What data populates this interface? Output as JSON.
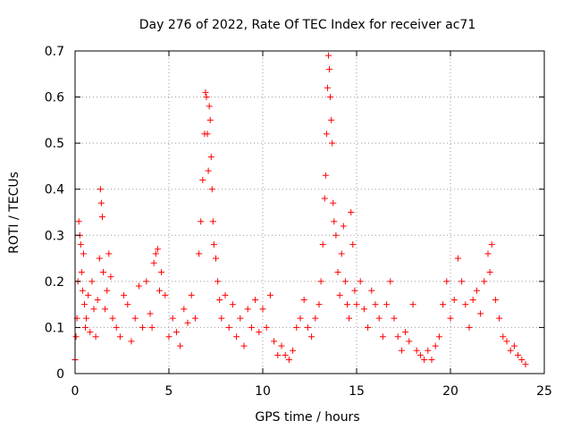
{
  "chart_data": {
    "type": "scatter",
    "title": "Day 276 of 2022, Rate Of TEC Index for receiver ac71",
    "xlabel": "GPS time / hours",
    "ylabel": "ROTI / TECUs",
    "xlim": [
      0,
      25
    ],
    "ylim": [
      0,
      0.7
    ],
    "x_ticks": [
      0,
      5,
      10,
      15,
      20,
      25
    ],
    "y_ticks": [
      0,
      0.1,
      0.2,
      0.3,
      0.4,
      0.5,
      0.6,
      0.7
    ],
    "x_tick_labels": [
      "0",
      "5",
      "10",
      "15",
      "20",
      "25"
    ],
    "y_tick_labels": [
      "0",
      "0.1",
      "0.2",
      "0.3",
      "0.4",
      "0.5",
      "0.6",
      "0.7"
    ],
    "grid": true,
    "marker": "plus",
    "color": "#ff0000",
    "series": [
      {
        "points": [
          [
            0.0,
            0.03
          ],
          [
            0.05,
            0.08
          ],
          [
            0.1,
            0.12
          ],
          [
            0.15,
            0.2
          ],
          [
            0.2,
            0.33
          ],
          [
            0.25,
            0.3
          ],
          [
            0.3,
            0.28
          ],
          [
            0.35,
            0.22
          ],
          [
            0.4,
            0.18
          ],
          [
            0.45,
            0.26
          ],
          [
            0.5,
            0.15
          ],
          [
            0.55,
            0.1
          ],
          [
            0.6,
            0.12
          ],
          [
            0.7,
            0.17
          ],
          [
            0.8,
            0.09
          ],
          [
            0.9,
            0.2
          ],
          [
            1.0,
            0.14
          ],
          [
            1.1,
            0.08
          ],
          [
            1.2,
            0.16
          ],
          [
            1.3,
            0.25
          ],
          [
            1.35,
            0.4
          ],
          [
            1.4,
            0.37
          ],
          [
            1.45,
            0.34
          ],
          [
            1.5,
            0.22
          ],
          [
            1.6,
            0.14
          ],
          [
            1.7,
            0.18
          ],
          [
            1.8,
            0.26
          ],
          [
            1.9,
            0.21
          ],
          [
            2.0,
            0.12
          ],
          [
            2.2,
            0.1
          ],
          [
            2.4,
            0.08
          ],
          [
            2.6,
            0.17
          ],
          [
            2.8,
            0.15
          ],
          [
            3.0,
            0.07
          ],
          [
            3.2,
            0.12
          ],
          [
            3.4,
            0.19
          ],
          [
            3.6,
            0.1
          ],
          [
            3.8,
            0.2
          ],
          [
            4.0,
            0.13
          ],
          [
            4.1,
            0.1
          ],
          [
            4.2,
            0.24
          ],
          [
            4.3,
            0.26
          ],
          [
            4.4,
            0.27
          ],
          [
            4.5,
            0.18
          ],
          [
            4.6,
            0.22
          ],
          [
            4.8,
            0.17
          ],
          [
            5.0,
            0.08
          ],
          [
            5.2,
            0.12
          ],
          [
            5.4,
            0.09
          ],
          [
            5.6,
            0.06
          ],
          [
            5.8,
            0.14
          ],
          [
            6.0,
            0.11
          ],
          [
            6.2,
            0.17
          ],
          [
            6.4,
            0.12
          ],
          [
            6.6,
            0.26
          ],
          [
            6.7,
            0.33
          ],
          [
            6.8,
            0.42
          ],
          [
            6.9,
            0.52
          ],
          [
            6.95,
            0.61
          ],
          [
            7.0,
            0.6
          ],
          [
            7.05,
            0.52
          ],
          [
            7.1,
            0.44
          ],
          [
            7.15,
            0.58
          ],
          [
            7.2,
            0.55
          ],
          [
            7.25,
            0.47
          ],
          [
            7.3,
            0.4
          ],
          [
            7.35,
            0.33
          ],
          [
            7.4,
            0.28
          ],
          [
            7.5,
            0.25
          ],
          [
            7.6,
            0.2
          ],
          [
            7.7,
            0.16
          ],
          [
            7.8,
            0.12
          ],
          [
            8.0,
            0.17
          ],
          [
            8.2,
            0.1
          ],
          [
            8.4,
            0.15
          ],
          [
            8.6,
            0.08
          ],
          [
            8.8,
            0.12
          ],
          [
            9.0,
            0.06
          ],
          [
            9.2,
            0.14
          ],
          [
            9.4,
            0.1
          ],
          [
            9.6,
            0.16
          ],
          [
            9.8,
            0.09
          ],
          [
            10.0,
            0.14
          ],
          [
            10.2,
            0.1
          ],
          [
            10.4,
            0.17
          ],
          [
            10.6,
            0.07
          ],
          [
            10.8,
            0.04
          ],
          [
            11.0,
            0.06
          ],
          [
            11.2,
            0.04
          ],
          [
            11.4,
            0.03
          ],
          [
            11.6,
            0.05
          ],
          [
            11.8,
            0.1
          ],
          [
            12.0,
            0.12
          ],
          [
            12.2,
            0.16
          ],
          [
            12.4,
            0.1
          ],
          [
            12.6,
            0.08
          ],
          [
            12.8,
            0.12
          ],
          [
            13.0,
            0.15
          ],
          [
            13.1,
            0.2
          ],
          [
            13.2,
            0.28
          ],
          [
            13.3,
            0.38
          ],
          [
            13.35,
            0.43
          ],
          [
            13.4,
            0.52
          ],
          [
            13.45,
            0.62
          ],
          [
            13.5,
            0.69
          ],
          [
            13.55,
            0.66
          ],
          [
            13.6,
            0.6
          ],
          [
            13.65,
            0.55
          ],
          [
            13.7,
            0.5
          ],
          [
            13.75,
            0.37
          ],
          [
            13.8,
            0.33
          ],
          [
            13.9,
            0.3
          ],
          [
            14.0,
            0.22
          ],
          [
            14.1,
            0.17
          ],
          [
            14.2,
            0.26
          ],
          [
            14.3,
            0.32
          ],
          [
            14.4,
            0.2
          ],
          [
            14.5,
            0.15
          ],
          [
            14.6,
            0.12
          ],
          [
            14.7,
            0.35
          ],
          [
            14.8,
            0.28
          ],
          [
            14.9,
            0.18
          ],
          [
            15.0,
            0.15
          ],
          [
            15.2,
            0.2
          ],
          [
            15.4,
            0.14
          ],
          [
            15.6,
            0.1
          ],
          [
            15.8,
            0.18
          ],
          [
            16.0,
            0.15
          ],
          [
            16.2,
            0.12
          ],
          [
            16.4,
            0.08
          ],
          [
            16.6,
            0.15
          ],
          [
            16.8,
            0.2
          ],
          [
            17.0,
            0.12
          ],
          [
            17.2,
            0.08
          ],
          [
            17.4,
            0.05
          ],
          [
            17.6,
            0.09
          ],
          [
            17.8,
            0.07
          ],
          [
            18.0,
            0.15
          ],
          [
            18.2,
            0.05
          ],
          [
            18.4,
            0.04
          ],
          [
            18.6,
            0.03
          ],
          [
            18.8,
            0.05
          ],
          [
            19.0,
            0.03
          ],
          [
            19.2,
            0.06
          ],
          [
            19.4,
            0.08
          ],
          [
            19.6,
            0.15
          ],
          [
            19.8,
            0.2
          ],
          [
            20.0,
            0.12
          ],
          [
            20.2,
            0.16
          ],
          [
            20.4,
            0.25
          ],
          [
            20.6,
            0.2
          ],
          [
            20.8,
            0.15
          ],
          [
            21.0,
            0.1
          ],
          [
            21.2,
            0.16
          ],
          [
            21.4,
            0.18
          ],
          [
            21.6,
            0.13
          ],
          [
            21.8,
            0.2
          ],
          [
            22.0,
            0.26
          ],
          [
            22.1,
            0.22
          ],
          [
            22.2,
            0.28
          ],
          [
            22.4,
            0.16
          ],
          [
            22.6,
            0.12
          ],
          [
            22.8,
            0.08
          ],
          [
            23.0,
            0.07
          ],
          [
            23.2,
            0.05
          ],
          [
            23.4,
            0.06
          ],
          [
            23.6,
            0.04
          ],
          [
            23.8,
            0.03
          ],
          [
            24.0,
            0.02
          ]
        ]
      }
    ]
  }
}
